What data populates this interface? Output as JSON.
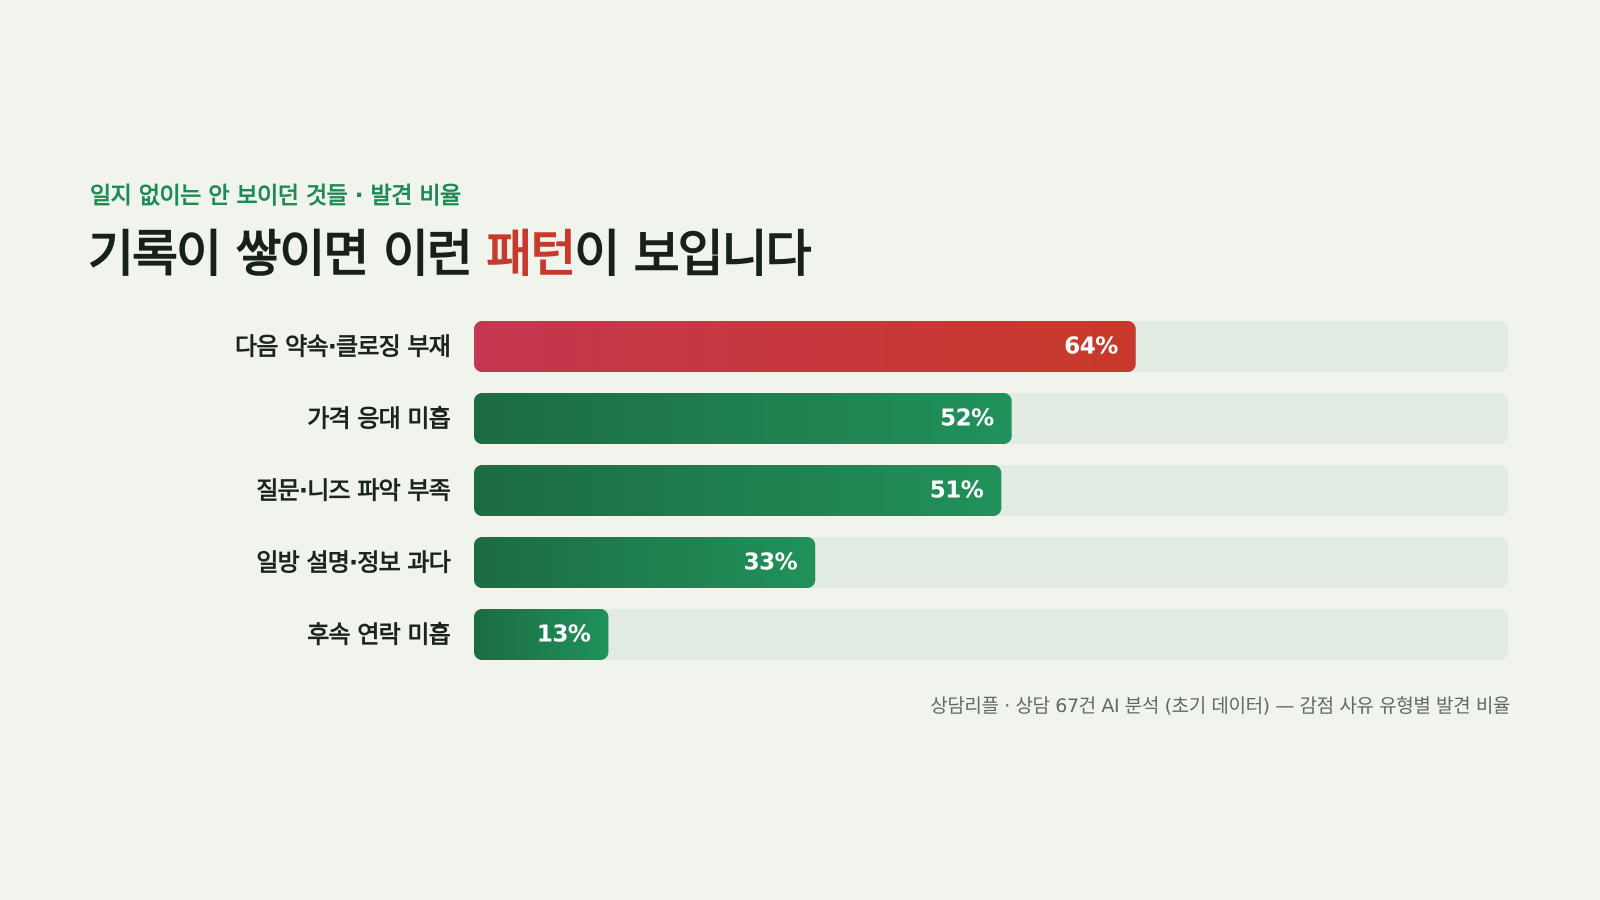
{
  "header": {
    "eyebrow": "일지 없이는 안 보이던 것들 · 발견 비율",
    "title_prefix": "기록이 쌓이면 이런 ",
    "title_accent": "패턴",
    "title_suffix": "이 보입니다"
  },
  "chart_data": {
    "type": "bar",
    "orientation": "horizontal",
    "categories": [
      "다음 약속·클로징 부재",
      "가격 응대 미흡",
      "질문·니즈 파악 부족",
      "일방 설명·정보 과다",
      "후속 연락 미흡"
    ],
    "values": [
      64,
      52,
      51,
      33,
      13
    ],
    "value_labels": [
      "64%",
      "52%",
      "51%",
      "33%",
      "13%"
    ],
    "xlim": [
      0,
      100
    ],
    "unit": "%",
    "highlight_index": 0,
    "grid": false,
    "legend": "none"
  },
  "caption": "상담리플 · 상담 67건 AI 분석 (초기 데이터) — 감점 사유 유형별 발견 비율",
  "colors": {
    "background": "#f0f4ec",
    "track": "#e3ece2",
    "highlight_start": "#c4374f",
    "highlight_end": "#c8392b",
    "bar_start": "#1c6b44",
    "bar_end": "#21915a",
    "accent_text": "#c7392b",
    "eyebrow_text": "#1f8a55"
  }
}
